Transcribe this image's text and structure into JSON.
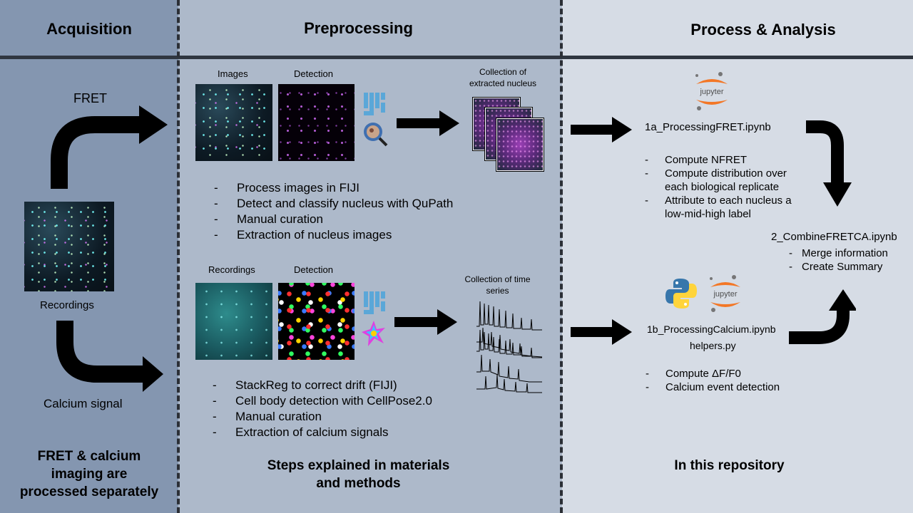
{
  "colors": {
    "acquisition_bg": "#8496b0",
    "preprocessing_bg": "#adb9ca",
    "analysis_bg": "#d6dce5",
    "arrow": "#000000",
    "jupyter_orange": "#f37726",
    "python_blue": "#3776ab",
    "python_yellow": "#ffd43b"
  },
  "acquisition": {
    "title": "Acquisition",
    "fret_label": "FRET",
    "recordings_label": "Recordings",
    "calcium_label": "Calcium signal",
    "footer": [
      "FRET & calcium",
      "imaging  are",
      "processed separately"
    ]
  },
  "preprocessing": {
    "title": "Preprocessing",
    "fret": {
      "images_label": "Images",
      "detection_label": "Detection",
      "collection_label": [
        "Collection of",
        "extracted nucleus"
      ],
      "steps": [
        "Process images in FIJI",
        "Detect and classify nucleus with QuPath",
        "Manual curation",
        "Extraction of nucleus images"
      ]
    },
    "calcium": {
      "recordings_label": "Recordings",
      "detection_label": "Detection",
      "collection_label": [
        "Collection of time",
        "series"
      ],
      "steps": [
        "StackReg to correct drift (FIJI)",
        "Cell body detection with CellPose2.0",
        "Manual curation",
        "Extraction of calcium signals"
      ]
    },
    "footer": [
      "Steps explained in materials",
      "and methods"
    ]
  },
  "analysis": {
    "title": "Process & Analysis",
    "jupyter_logo": "jupyter",
    "fret_notebook": "1a_ProcessingFRET.ipynb",
    "fret_steps": [
      "Compute NFRET",
      "Compute distribution over each biological replicate",
      "Attribute to each nucleus a low-mid-high label"
    ],
    "combine_notebook": "2_CombineFRETCA.ipynb",
    "combine_steps": [
      "Merge information",
      "Create Summary"
    ],
    "calcium_notebook": "1b_ProcessingCalcium.ipynb",
    "helpers": "helpers.py",
    "calcium_steps": [
      "Compute ΔF/F0",
      "Calcium event detection"
    ],
    "footer": "In this repository"
  }
}
